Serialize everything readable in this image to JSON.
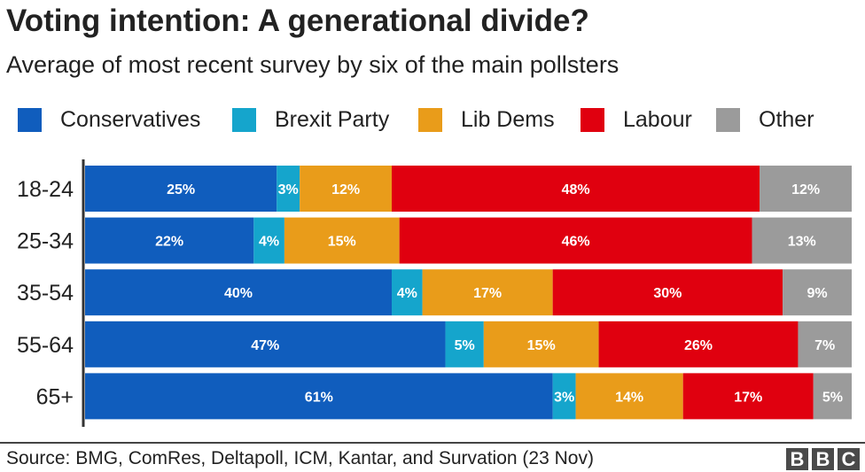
{
  "chart_data": {
    "type": "bar",
    "orientation": "horizontal",
    "stacked": true,
    "title": "Voting intention: A generational divide?",
    "subtitle": "Average of most recent survey by six of the main pollsters",
    "categories": [
      "18-24",
      "25-34",
      "35-54",
      "55-64",
      "65+"
    ],
    "series": [
      {
        "name": "Conservatives",
        "color": "#105dbd",
        "values": [
          25,
          22,
          40,
          47,
          61
        ]
      },
      {
        "name": "Brexit Party",
        "color": "#15a5cc",
        "values": [
          3,
          4,
          4,
          5,
          3
        ]
      },
      {
        "name": "Lib Dems",
        "color": "#e99c1a",
        "values": [
          12,
          15,
          17,
          15,
          14
        ]
      },
      {
        "name": "Labour",
        "color": "#e0000f",
        "values": [
          48,
          46,
          30,
          26,
          17
        ]
      },
      {
        "name": "Other",
        "color": "#9b9b9b",
        "values": [
          12,
          13,
          9,
          7,
          5
        ]
      }
    ],
    "value_suffix": "%",
    "xlim": [
      0,
      100
    ],
    "legend_position": "top",
    "grid": false,
    "source": "Source: BMG, ComRes, Deltapoll, ICM, Kantar, and Survation (23 Nov)",
    "logo": "BBC"
  }
}
